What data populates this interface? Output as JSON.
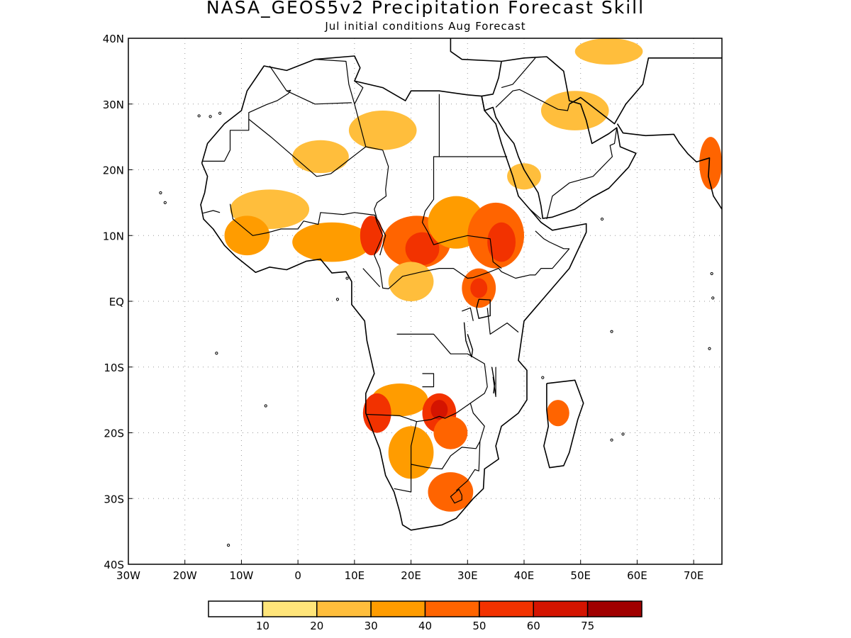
{
  "title": "NASA_GEOS5v2 Precipitation Forecast Skill",
  "subtitle": "Jul initial conditions   Aug Forecast",
  "map": {
    "lon_range": [
      -30,
      75
    ],
    "lat_range": [
      -40,
      40
    ],
    "lat_ticks": [
      {
        "label": "40N",
        "lat": 40
      },
      {
        "label": "30N",
        "lat": 30
      },
      {
        "label": "20N",
        "lat": 20
      },
      {
        "label": "10N",
        "lat": 10
      },
      {
        "label": "EQ",
        "lat": 0
      },
      {
        "label": "10S",
        "lat": -10
      },
      {
        "label": "20S",
        "lat": -20
      },
      {
        "label": "30S",
        "lat": -30
      },
      {
        "label": "40S",
        "lat": -40
      }
    ],
    "lon_ticks": [
      {
        "label": "30W",
        "lon": -30
      },
      {
        "label": "20W",
        "lon": -20
      },
      {
        "label": "10W",
        "lon": -10
      },
      {
        "label": "0",
        "lon": 0
      },
      {
        "label": "10E",
        "lon": 10
      },
      {
        "label": "20E",
        "lon": 20
      },
      {
        "label": "30E",
        "lon": 30
      },
      {
        "label": "40E",
        "lon": 40
      },
      {
        "label": "50E",
        "lon": 50
      },
      {
        "label": "60E",
        "lon": 60
      },
      {
        "label": "70E",
        "lon": 70
      }
    ],
    "grid": "dotted"
  },
  "colorbar": {
    "colors": [
      "#ffffff",
      "#ffe57a",
      "#ffbe3c",
      "#ff9c00",
      "#ff6400",
      "#f23200",
      "#d41400",
      "#a00000"
    ],
    "labels": [
      "10",
      "20",
      "30",
      "40",
      "50",
      "60",
      "75"
    ]
  },
  "skill_patches": [
    {
      "lon": 15,
      "lat": 26,
      "rx": 6,
      "ry": 3,
      "level": 2
    },
    {
      "lon": 4,
      "lat": 22,
      "rx": 5,
      "ry": 2.5,
      "level": 2
    },
    {
      "lon": -5,
      "lat": 14,
      "rx": 7,
      "ry": 3,
      "level": 2
    },
    {
      "lon": -9,
      "lat": 10,
      "rx": 4,
      "ry": 3,
      "level": 3
    },
    {
      "lon": 6,
      "lat": 9,
      "rx": 7,
      "ry": 3,
      "level": 3
    },
    {
      "lon": 13,
      "lat": 10,
      "rx": 2,
      "ry": 3,
      "level": 5
    },
    {
      "lon": 21,
      "lat": 9,
      "rx": 6,
      "ry": 4,
      "level": 4
    },
    {
      "lon": 22,
      "lat": 8,
      "rx": 3,
      "ry": 2.5,
      "level": 5
    },
    {
      "lon": 28,
      "lat": 12,
      "rx": 5,
      "ry": 4,
      "level": 3
    },
    {
      "lon": 35,
      "lat": 10,
      "rx": 5,
      "ry": 5,
      "level": 4
    },
    {
      "lon": 36,
      "lat": 9,
      "rx": 2.5,
      "ry": 3,
      "level": 5
    },
    {
      "lon": 32,
      "lat": 2,
      "rx": 3,
      "ry": 3,
      "level": 4
    },
    {
      "lon": 32,
      "lat": 2,
      "rx": 1.5,
      "ry": 1.5,
      "level": 5
    },
    {
      "lon": 20,
      "lat": 3,
      "rx": 4,
      "ry": 3,
      "level": 2
    },
    {
      "lon": 18,
      "lat": -15,
      "rx": 5,
      "ry": 2.5,
      "level": 3
    },
    {
      "lon": 14,
      "lat": -17,
      "rx": 2.5,
      "ry": 3,
      "level": 5
    },
    {
      "lon": 25,
      "lat": -17,
      "rx": 3,
      "ry": 3,
      "level": 5
    },
    {
      "lon": 25,
      "lat": -16.5,
      "rx": 1.5,
      "ry": 1.5,
      "level": 6
    },
    {
      "lon": 20,
      "lat": -23,
      "rx": 4,
      "ry": 4,
      "level": 3
    },
    {
      "lon": 27,
      "lat": -20,
      "rx": 3,
      "ry": 2.5,
      "level": 4
    },
    {
      "lon": 27,
      "lat": -29,
      "rx": 4,
      "ry": 3,
      "level": 4
    },
    {
      "lon": 46,
      "lat": -17,
      "rx": 2,
      "ry": 2,
      "level": 4
    },
    {
      "lon": 49,
      "lat": 29,
      "rx": 6,
      "ry": 3,
      "level": 2
    },
    {
      "lon": 73,
      "lat": 21,
      "rx": 2,
      "ry": 4,
      "level": 4
    },
    {
      "lon": 40,
      "lat": 19,
      "rx": 3,
      "ry": 2,
      "level": 2
    },
    {
      "lon": 55,
      "lat": 38,
      "rx": 6,
      "ry": 2,
      "level": 2
    }
  ],
  "coastlines": [
    [
      [
        -17,
        21
      ],
      [
        -16,
        24
      ],
      [
        -13,
        27
      ],
      [
        -10,
        29
      ],
      [
        -9,
        32
      ],
      [
        -6,
        35.8
      ],
      [
        -2,
        35.1
      ],
      [
        3,
        36.8
      ],
      [
        10,
        37.3
      ],
      [
        11,
        35.5
      ],
      [
        10,
        33.5
      ],
      [
        15,
        32.5
      ],
      [
        19,
        30.5
      ],
      [
        20,
        32
      ],
      [
        25,
        32
      ],
      [
        30,
        31.4
      ],
      [
        32.5,
        31.2
      ],
      [
        33,
        29
      ],
      [
        35,
        27
      ],
      [
        36,
        24
      ],
      [
        38,
        19
      ],
      [
        39,
        16
      ],
      [
        41,
        14
      ],
      [
        43,
        12
      ],
      [
        45,
        10.8
      ],
      [
        51,
        11.8
      ],
      [
        51,
        10.5
      ],
      [
        48,
        5
      ],
      [
        45,
        2
      ],
      [
        42,
        -1
      ],
      [
        40,
        -3
      ],
      [
        39.5,
        -6
      ],
      [
        39,
        -9
      ],
      [
        40.5,
        -10.5
      ],
      [
        40.5,
        -15
      ],
      [
        39,
        -17
      ],
      [
        36,
        -19
      ],
      [
        35,
        -22
      ],
      [
        35.5,
        -24
      ],
      [
        33,
        -25.5
      ],
      [
        32.8,
        -28.5
      ],
      [
        31,
        -30
      ],
      [
        28,
        -33
      ],
      [
        25.5,
        -34
      ],
      [
        20,
        -34.8
      ],
      [
        18.5,
        -34
      ],
      [
        18,
        -32
      ],
      [
        17,
        -29
      ],
      [
        15.5,
        -26.5
      ],
      [
        14.5,
        -22.5
      ],
      [
        12,
        -17
      ],
      [
        12,
        -14
      ],
      [
        13.5,
        -11
      ],
      [
        12.2,
        -6
      ],
      [
        11.8,
        -3
      ],
      [
        9.5,
        -0.5
      ],
      [
        9.5,
        3
      ],
      [
        8.5,
        4.5
      ],
      [
        6,
        4.3
      ],
      [
        4,
        6.4
      ],
      [
        1.5,
        6.1
      ],
      [
        -2,
        4.8
      ],
      [
        -5,
        5.2
      ],
      [
        -7.5,
        4.4
      ],
      [
        -11,
        6.8
      ],
      [
        -13,
        8.5
      ],
      [
        -15,
        11
      ],
      [
        -16.7,
        12.5
      ],
      [
        -17.2,
        14.7
      ],
      [
        -16.5,
        16.5
      ],
      [
        -16,
        19
      ],
      [
        -17,
        21
      ]
    ],
    [
      [
        44,
        -12.5
      ],
      [
        49,
        -12
      ],
      [
        50.5,
        -15.5
      ],
      [
        49.5,
        -18
      ],
      [
        48,
        -23
      ],
      [
        47,
        -25
      ],
      [
        44.5,
        -25.3
      ],
      [
        43.5,
        -22
      ],
      [
        44.3,
        -19
      ],
      [
        44,
        -16.5
      ],
      [
        44,
        -12.5
      ]
    ],
    [
      [
        32.5,
        31.2
      ],
      [
        34.5,
        31.5
      ],
      [
        35.5,
        34
      ],
      [
        36,
        36.5
      ],
      [
        40,
        37
      ],
      [
        44,
        37.2
      ],
      [
        47,
        35
      ],
      [
        48,
        30.5
      ],
      [
        50,
        30
      ],
      [
        51,
        27.5
      ],
      [
        52,
        24
      ],
      [
        55,
        25.5
      ],
      [
        56.4,
        26.4
      ],
      [
        57,
        23.5
      ],
      [
        59.8,
        22.5
      ],
      [
        58.5,
        20.4
      ],
      [
        55,
        17.2
      ],
      [
        52,
        15.8
      ],
      [
        49,
        14
      ],
      [
        45,
        12.8
      ],
      [
        43.3,
        12.6
      ],
      [
        43,
        14.5
      ],
      [
        42.5,
        16.5
      ],
      [
        40,
        20
      ],
      [
        39,
        22
      ],
      [
        38.2,
        24
      ],
      [
        36.6,
        25.7
      ],
      [
        35,
        28
      ],
      [
        34.5,
        29.5
      ],
      [
        33,
        29
      ],
      [
        32.5,
        31.2
      ]
    ],
    [
      [
        56.5,
        27
      ],
      [
        57.5,
        25.6
      ],
      [
        61.5,
        25.2
      ],
      [
        66.5,
        25.4
      ],
      [
        67.5,
        24
      ],
      [
        69,
        22.4
      ],
      [
        70.5,
        21.2
      ],
      [
        72.8,
        21.8
      ],
      [
        72.6,
        19
      ],
      [
        73.5,
        16
      ],
      [
        75,
        14
      ]
    ],
    [
      [
        48,
        30
      ],
      [
        50,
        31
      ],
      [
        56,
        27
      ],
      [
        58,
        30
      ],
      [
        61,
        33
      ],
      [
        62,
        37
      ],
      [
        75,
        37
      ]
    ],
    [
      [
        36,
        36.5
      ],
      [
        29,
        36.8
      ],
      [
        27,
        38
      ],
      [
        27,
        40
      ]
    ]
  ],
  "borders": [
    [
      [
        -8.7,
        27.7
      ],
      [
        -8.7,
        26
      ],
      [
        -12,
        26
      ],
      [
        -12,
        23
      ],
      [
        -13,
        21.3
      ],
      [
        -17,
        21.3
      ]
    ],
    [
      [
        -8.7,
        27.7
      ],
      [
        -4.8,
        25
      ],
      [
        3.3,
        19
      ],
      [
        4.2,
        19.1
      ],
      [
        5.8,
        19.4
      ],
      [
        12,
        23.5
      ],
      [
        15,
        23
      ]
    ],
    [
      [
        -12,
        14.8
      ],
      [
        -11.5,
        12.5
      ],
      [
        -8,
        10
      ],
      [
        -5.5,
        10.4
      ],
      [
        -3,
        11
      ],
      [
        0,
        11
      ],
      [
        1,
        12.2
      ],
      [
        3.6,
        11.7
      ],
      [
        4,
        13.5
      ],
      [
        8,
        13.2
      ],
      [
        10,
        13.5
      ],
      [
        13.6,
        13.1
      ],
      [
        14,
        12
      ],
      [
        15,
        10
      ],
      [
        13.5,
        7
      ],
      [
        14.5,
        5
      ],
      [
        15,
        2
      ],
      [
        16,
        1.9
      ],
      [
        18.5,
        3.8
      ],
      [
        22,
        4.5
      ],
      [
        25,
        5
      ],
      [
        27.5,
        5
      ],
      [
        30,
        3.5
      ],
      [
        31,
        3.6
      ],
      [
        34,
        4.5
      ],
      [
        35.5,
        5
      ],
      [
        36,
        4.5
      ],
      [
        38.5,
        3.5
      ],
      [
        41,
        4
      ],
      [
        42,
        4
      ],
      [
        43,
        5
      ],
      [
        45,
        5
      ],
      [
        48,
        8
      ]
    ],
    [
      [
        15,
        23
      ],
      [
        16,
        20.5
      ],
      [
        15.5,
        17
      ],
      [
        15.6,
        16
      ],
      [
        14,
        15
      ],
      [
        13.5,
        14
      ],
      [
        14,
        12.5
      ],
      [
        15.5,
        10
      ],
      [
        14.5,
        7
      ]
    ],
    [
      [
        24,
        20
      ],
      [
        24,
        15.5
      ],
      [
        22.5,
        13.7
      ],
      [
        22,
        12
      ],
      [
        23,
        10.5
      ],
      [
        24,
        8.6
      ],
      [
        27.5,
        9.5
      ],
      [
        30,
        10
      ],
      [
        34,
        9.5
      ],
      [
        34.5,
        6
      ],
      [
        36,
        5
      ]
    ],
    [
      [
        25,
        31.5
      ],
      [
        25,
        22
      ],
      [
        37,
        22
      ]
    ],
    [
      [
        24,
        20
      ],
      [
        24,
        22
      ],
      [
        25,
        22
      ]
    ],
    [
      [
        17.5,
        -5
      ],
      [
        24,
        -5
      ],
      [
        27,
        -8
      ],
      [
        30,
        -8
      ],
      [
        33,
        -9.5
      ],
      [
        33.5,
        -13
      ],
      [
        33,
        -14
      ],
      [
        30.5,
        -15.5
      ],
      [
        28,
        -17
      ],
      [
        26,
        -17.8
      ],
      [
        25,
        -17.5
      ],
      [
        23.5,
        -18
      ],
      [
        21,
        -18.3
      ],
      [
        18,
        -17.4
      ],
      [
        12,
        -17.2
      ]
    ],
    [
      [
        21,
        -18.3
      ],
      [
        20,
        -22
      ],
      [
        20,
        -24.8
      ],
      [
        20,
        -29
      ],
      [
        17,
        -28.5
      ]
    ],
    [
      [
        30.5,
        -15.5
      ],
      [
        31,
        -17
      ],
      [
        33,
        -19
      ],
      [
        32.2,
        -21.3
      ],
      [
        31.5,
        -22.4
      ],
      [
        29,
        -22.2
      ],
      [
        27,
        -23.5
      ],
      [
        25.5,
        -25.5
      ],
      [
        23,
        -25.3
      ],
      [
        20,
        -24.8
      ]
    ],
    [
      [
        32.2,
        -21.3
      ],
      [
        32,
        -25.8
      ],
      [
        31.3,
        -25.6
      ],
      [
        30,
        -27.3
      ],
      [
        28,
        -28.8
      ]
    ],
    [
      [
        29,
        -29.5
      ],
      [
        28.5,
        -28.6
      ],
      [
        27,
        -29.7
      ],
      [
        27.7,
        -30.7
      ],
      [
        29,
        -30.2
      ],
      [
        29,
        -29.5
      ]
    ],
    [
      [
        22,
        -13
      ],
      [
        24,
        -13
      ],
      [
        24,
        -11
      ],
      [
        22,
        -11
      ]
    ],
    [
      [
        11.5,
        5
      ],
      [
        14.5,
        2.2
      ]
    ],
    [
      [
        29,
        -1.5
      ],
      [
        30.5,
        -1
      ],
      [
        31,
        -3
      ]
    ],
    [
      [
        33.5,
        -1
      ],
      [
        34,
        -5
      ],
      [
        37,
        -3.3
      ],
      [
        39,
        -4.7
      ]
    ],
    [
      [
        35,
        -10
      ],
      [
        35,
        -14.5
      ],
      [
        34.5,
        -11.5
      ]
    ],
    [
      [
        3,
        36.8
      ],
      [
        8.5,
        36.5
      ],
      [
        9,
        33
      ],
      [
        10,
        30
      ],
      [
        12,
        23.5
      ]
    ],
    [
      [
        -5,
        35.8
      ],
      [
        -2,
        32
      ],
      [
        -1.3,
        32.1
      ],
      [
        -1.7,
        31.6
      ],
      [
        -3.7,
        30.5
      ],
      [
        -5.6,
        29.9
      ],
      [
        -8.7,
        28.7
      ],
      [
        -8.7,
        27.7
      ]
    ],
    [
      [
        -2,
        32
      ],
      [
        3,
        30
      ],
      [
        9.5,
        30.2
      ]
    ],
    [
      [
        10,
        33.5
      ],
      [
        11.5,
        32.5
      ],
      [
        10,
        30
      ]
    ],
    [
      [
        36,
        32.5
      ],
      [
        38,
        33
      ],
      [
        42,
        37
      ]
    ],
    [
      [
        35,
        29.5
      ],
      [
        38,
        32
      ],
      [
        39.2,
        32.2
      ],
      [
        46,
        29.2
      ],
      [
        47.7,
        29
      ],
      [
        48,
        30
      ]
    ],
    [
      [
        44,
        12.5
      ],
      [
        45,
        16
      ],
      [
        48,
        18
      ],
      [
        52.2,
        19
      ],
      [
        55.6,
        22
      ],
      [
        55.2,
        23.7
      ],
      [
        56,
        24
      ],
      [
        56.4,
        26.4
      ]
    ],
    [
      [
        41,
        14
      ],
      [
        43,
        12.5
      ]
    ],
    [
      [
        -16.8,
        13.4
      ],
      [
        -15,
        13.8
      ],
      [
        -13.8,
        13.5
      ]
    ],
    [
      [
        42,
        10.7
      ],
      [
        43.5,
        9.5
      ],
      [
        44.5,
        9
      ],
      [
        47,
        8
      ],
      [
        48,
        8
      ]
    ]
  ],
  "lakes": [
    [
      [
        32,
        0.3
      ],
      [
        34,
        0.2
      ],
      [
        34,
        -2.2
      ],
      [
        32,
        -2.6
      ],
      [
        31.6,
        -1
      ],
      [
        32,
        0.3
      ]
    ],
    [
      [
        29.4,
        -3.2
      ],
      [
        29.7,
        -6
      ],
      [
        30.7,
        -8.5
      ],
      [
        30.9,
        -7.4
      ],
      [
        30,
        -5
      ]
    ],
    [
      [
        34.3,
        -10
      ],
      [
        34.8,
        -12.5
      ],
      [
        34.6,
        -14
      ]
    ]
  ],
  "islands": [
    [
      -17.5,
      28.2
    ],
    [
      -15.5,
      28.1
    ],
    [
      -13.8,
      28.6
    ],
    [
      -23.5,
      15
    ],
    [
      -24.3,
      16.5
    ],
    [
      -5.7,
      -15.9
    ],
    [
      -14.4,
      -7.9
    ],
    [
      8.7,
      3.5
    ],
    [
      7,
      0.3
    ],
    [
      55.5,
      -4.6
    ],
    [
      57.5,
      -20.2
    ],
    [
      55.5,
      -21.1
    ],
    [
      72.8,
      -7.2
    ],
    [
      73.2,
      4.2
    ],
    [
      73.4,
      0.5
    ],
    [
      43.3,
      -11.6
    ],
    [
      53.8,
      12.5
    ],
    [
      -12.3,
      -37.1
    ]
  ]
}
